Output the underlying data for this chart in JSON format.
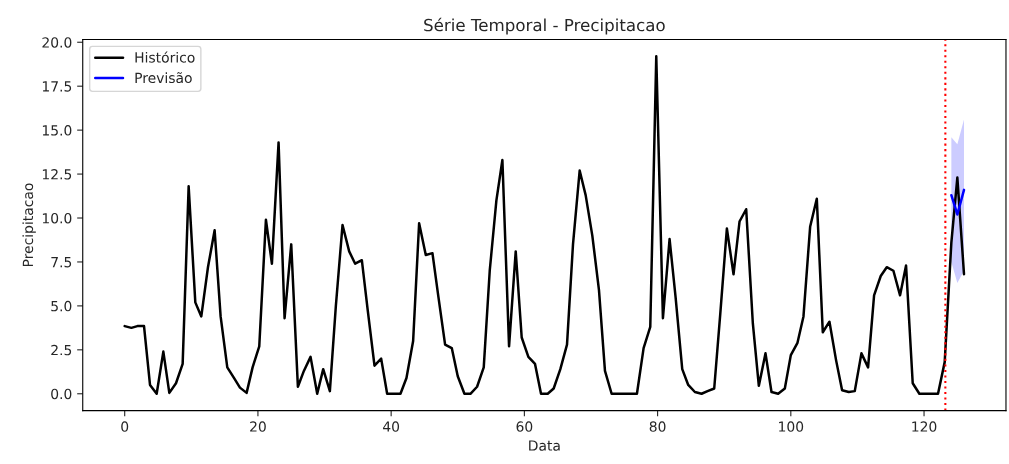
{
  "chart_data": {
    "type": "line",
    "title": "Série Temporal - Precipitacao",
    "xlabel": "Data",
    "ylabel": "Precipitacao",
    "xlim": [
      -6.3,
      132.3
    ],
    "ylim": [
      -0.96,
      20.16
    ],
    "xticks": [
      0,
      20,
      40,
      60,
      80,
      100,
      120
    ],
    "yticks": [
      {
        "value": 0,
        "label": "0.0"
      },
      {
        "value": 2.5,
        "label": "2.5"
      },
      {
        "value": 5,
        "label": "5.0"
      },
      {
        "value": 7.5,
        "label": "7.5"
      },
      {
        "value": 10,
        "label": "10.0"
      },
      {
        "value": 12.5,
        "label": "12.5"
      },
      {
        "value": 15,
        "label": "15.0"
      },
      {
        "value": 17.5,
        "label": "17.5"
      },
      {
        "value": 20,
        "label": "20.0"
      }
    ],
    "grid": false,
    "legend": "top left",
    "series": [
      {
        "name": "Histórico",
        "color": "#000000",
        "x": [
          0,
          1.0,
          1.9,
          2.9,
          3.8,
          4.8,
          5.8,
          6.7,
          7.7,
          8.7,
          9.6,
          10.6,
          11.5,
          12.5,
          13.5,
          14.4,
          15.4,
          16.4,
          17.3,
          18.3,
          19.2,
          20.2,
          21.2,
          22.1,
          23.1,
          24.0,
          25.0,
          26.0,
          26.9,
          27.9,
          28.9,
          29.8,
          30.8,
          31.7,
          32.7,
          33.7,
          34.6,
          35.6,
          36.5,
          37.5,
          38.5,
          39.4,
          40.4,
          41.4,
          42.3,
          43.3,
          44.2,
          45.2,
          46.2,
          47.1,
          48.1,
          49.1,
          50.0,
          51.0,
          51.9,
          52.9,
          53.9,
          54.8,
          55.8,
          56.7,
          57.7,
          58.7,
          59.6,
          60.6,
          61.6,
          62.5,
          63.5,
          64.4,
          65.4,
          66.4,
          67.3,
          68.3,
          69.2,
          70.2,
          71.2,
          72.1,
          73.1,
          74.1,
          75.0,
          76.0,
          76.9,
          77.9,
          78.9,
          79.8,
          80.8,
          81.8,
          82.7,
          83.7,
          84.6,
          85.6,
          86.6,
          87.5,
          88.5,
          89.4,
          90.4,
          91.4,
          92.3,
          93.3,
          94.3,
          95.2,
          96.2,
          97.1,
          98.1,
          99.1,
          100.0,
          101.0,
          101.9,
          102.9,
          103.9,
          104.8,
          105.8,
          106.8,
          107.7,
          108.7,
          109.6,
          110.6,
          111.6,
          112.5,
          113.5,
          114.4,
          115.4,
          116.4,
          117.3,
          118.3,
          119.3,
          120.2,
          121.2,
          122.1,
          123.1,
          124.1,
          125.0,
          126.0
        ],
        "values": [
          3.85,
          3.75,
          3.85,
          3.85,
          0.5,
          0.0,
          2.4,
          0.05,
          0.6,
          1.7,
          11.8,
          5.2,
          4.4,
          7.2,
          9.3,
          4.4,
          1.5,
          0.9,
          0.35,
          0.05,
          1.5,
          2.7,
          9.9,
          7.4,
          14.3,
          4.3,
          8.5,
          0.4,
          1.3,
          2.1,
          0.0,
          1.4,
          0.15,
          5.0,
          9.6,
          8.1,
          7.4,
          7.6,
          4.7,
          1.6,
          2.0,
          0.0,
          0.0,
          0.0,
          0.9,
          3.0,
          9.7,
          7.9,
          8.0,
          5.5,
          2.8,
          2.6,
          1.0,
          0.0,
          0.0,
          0.4,
          1.5,
          7.0,
          11.0,
          13.3,
          2.7,
          8.1,
          3.2,
          2.1,
          1.7,
          0.0,
          0.0,
          0.3,
          1.4,
          2.8,
          8.5,
          12.7,
          11.3,
          9.0,
          5.9,
          1.3,
          0.0,
          0.0,
          0.0,
          0.0,
          0.0,
          2.6,
          3.8,
          19.2,
          4.3,
          8.8,
          5.5,
          1.4,
          0.5,
          0.1,
          0.0,
          0.15,
          0.3,
          4.5,
          9.4,
          6.8,
          9.8,
          10.5,
          4.0,
          0.45,
          2.3,
          0.1,
          0.0,
          0.3,
          2.2,
          2.9,
          4.4,
          9.5,
          11.1,
          3.5,
          4.1,
          1.9,
          0.2,
          0.1,
          0.15,
          2.3,
          1.5,
          5.6,
          6.7,
          7.2,
          7.0,
          5.6,
          7.3,
          0.6,
          0.0,
          0.0,
          0.0,
          0.0,
          1.8,
          8.6,
          12.3,
          6.8
        ]
      },
      {
        "name": "Previsão",
        "color": "#0000ff",
        "x": [
          124.1,
          125.0,
          126.0
        ],
        "values": [
          11.3,
          10.2,
          11.6
        ],
        "lower": [
          7.5,
          6.3,
          7.0
        ],
        "upper": [
          14.6,
          14.2,
          15.6
        ]
      }
    ],
    "ref_lines": [
      {
        "axis": "x",
        "value": 123.2,
        "color": "#ff0000",
        "line_style": "dotted"
      }
    ]
  }
}
